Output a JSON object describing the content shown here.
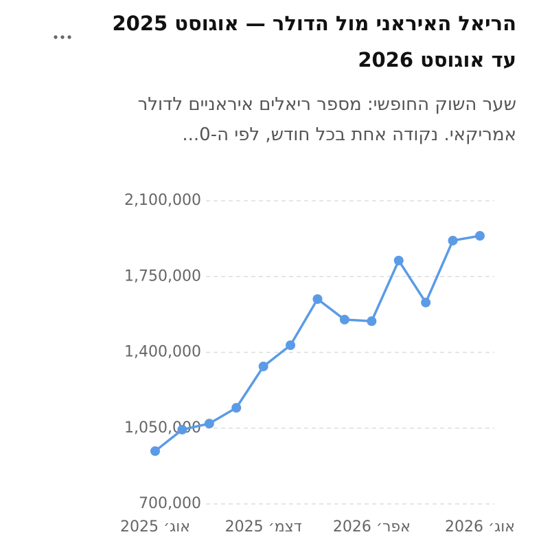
{
  "chart_data": {
    "type": "line",
    "title": "הריאל האיראני מול הדולר — אוגוסט 2025 עד אוגוסט 2026",
    "subtitle": "שער השוק החופשי: מספר ריאלים איראניים לדולר אמריקאי. נקודה אחת בכל חודש, לפי ה-0...",
    "categories": [
      "אוג׳ 2025",
      null,
      null,
      null,
      "דצמ׳ 2025",
      null,
      null,
      null,
      "אפר׳ 2026",
      null,
      null,
      null,
      "אוג׳ 2026"
    ],
    "series": [
      {
        "color": "#5b9be6",
        "values": [
          944000,
          1043000,
          1071000,
          1144000,
          1335000,
          1433000,
          1646000,
          1551000,
          1544000,
          1824000,
          1630000,
          1916000,
          1938000
        ]
      }
    ],
    "ylim": [
      700000,
      2100000
    ],
    "yticks": [
      {
        "value": 700000,
        "label": "700,000"
      },
      {
        "value": 1050000,
        "label": "1,050,000"
      },
      {
        "value": 1400000,
        "label": "1,400,000"
      },
      {
        "value": 1750000,
        "label": "1,750,000"
      },
      {
        "value": 2100000,
        "label": "2,100,000"
      }
    ],
    "grid": true
  }
}
